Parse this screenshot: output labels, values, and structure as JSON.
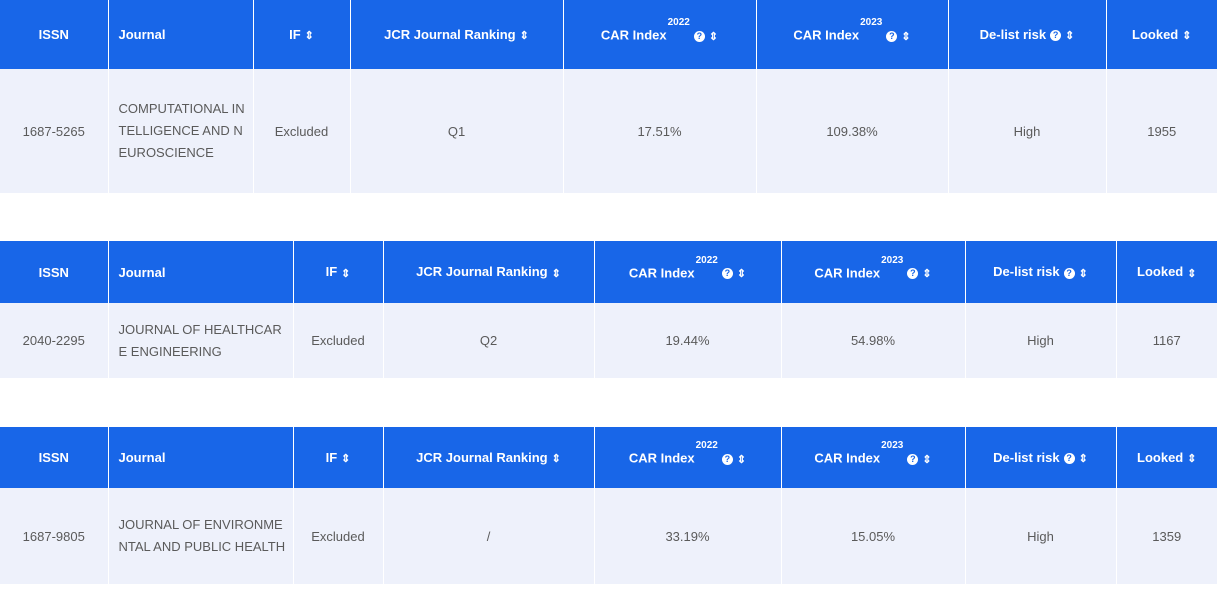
{
  "headers": {
    "issn": "ISSN",
    "journal": "Journal",
    "if": "IF",
    "jcr": "JCR Journal Ranking",
    "car_index": "CAR Index",
    "year_2022": "2022",
    "year_2023": "2023",
    "delist": "De-list risk",
    "looked": "Looked"
  },
  "icons": {
    "sort": "sort-updown-icon",
    "help": "question-circle-icon"
  },
  "colors": {
    "header_bg": "#1866e8",
    "row_bg": "#eef1fb"
  },
  "tables": [
    {
      "issn": "1687-5265",
      "journal": "COMPUTATIONAL INTELLIGENCE AND NEUROSCIENCE",
      "if": "Excluded",
      "jcr": "Q1",
      "car_2022": "17.51%",
      "car_2023": "109.38%",
      "delist": "High",
      "looked": "1955"
    },
    {
      "issn": "2040-2295",
      "journal": "JOURNAL OF HEALTHCARE ENGINEERING",
      "if": "Excluded",
      "jcr": "Q2",
      "car_2022": "19.44%",
      "car_2023": "54.98%",
      "delist": "High",
      "looked": "1167"
    },
    {
      "issn": "1687-9805",
      "journal": "JOURNAL OF ENVIRONMENTAL AND PUBLIC HEALTH",
      "if": "Excluded",
      "jcr": "/",
      "car_2022": "33.19%",
      "car_2023": "15.05%",
      "delist": "High",
      "looked": "1359"
    }
  ]
}
